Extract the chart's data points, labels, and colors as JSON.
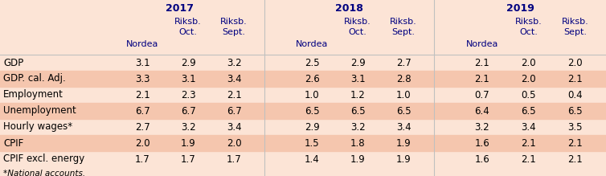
{
  "title_years": [
    "2017",
    "2018",
    "2019"
  ],
  "row_labels": [
    "GDP",
    "GDP. cal. Adj.",
    "Employment",
    "Unemployment",
    "Hourly wages*",
    "CPIF",
    "CPIF excl. energy"
  ],
  "footnote": "*National accounts.",
  "data": [
    [
      3.1,
      2.9,
      3.2,
      2.5,
      2.9,
      2.7,
      2.1,
      2.0,
      2.0
    ],
    [
      3.3,
      3.1,
      3.4,
      2.6,
      3.1,
      2.8,
      2.1,
      2.0,
      2.1
    ],
    [
      2.1,
      2.3,
      2.1,
      1.0,
      1.2,
      1.0,
      0.7,
      0.5,
      0.4
    ],
    [
      6.7,
      6.7,
      6.7,
      6.5,
      6.5,
      6.5,
      6.4,
      6.5,
      6.5
    ],
    [
      2.7,
      3.2,
      3.4,
      2.9,
      3.2,
      3.4,
      3.2,
      3.4,
      3.5
    ],
    [
      2.0,
      1.9,
      2.0,
      1.5,
      1.8,
      1.9,
      1.6,
      2.1,
      2.1
    ],
    [
      1.7,
      1.7,
      1.7,
      1.4,
      1.9,
      1.9,
      1.6,
      2.1,
      2.1
    ]
  ],
  "bg_color": "#fce4d6",
  "stripe_color": "#f5c6ae",
  "text_blue": "#000080",
  "text_black": "#000000",
  "divider_color": "#c0c0c0",
  "fig_width": 7.54,
  "fig_height": 2.19,
  "dpi": 100
}
